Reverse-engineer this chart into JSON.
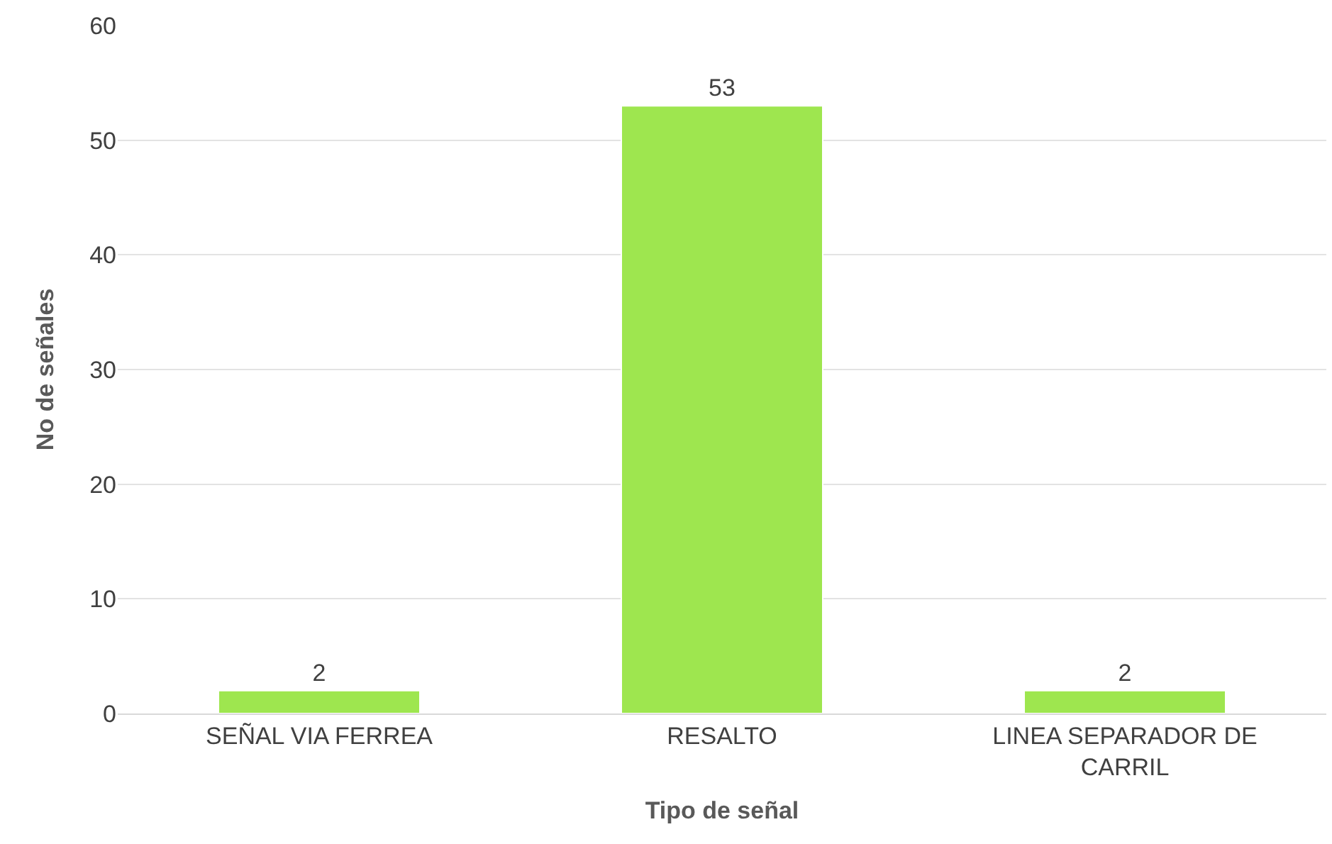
{
  "chart_data": {
    "type": "bar",
    "xlabel": "Tipo de señal",
    "ylabel": "No de señales",
    "categories": [
      "SEÑAL VIA FERREA",
      "RESALTO",
      "LINEA SEPARADOR DE CARRIL"
    ],
    "values": [
      2,
      53,
      2
    ],
    "color": "#9ee64f",
    "ylim": [
      0,
      60
    ],
    "yticks": [
      0,
      10,
      20,
      30,
      40,
      50,
      60
    ],
    "grid": "y",
    "data_labels": true,
    "legend": false
  }
}
